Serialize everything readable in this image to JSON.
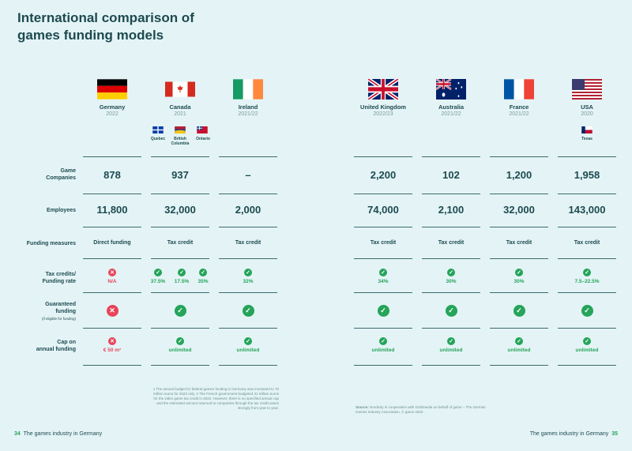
{
  "title_lines": [
    "International comparison of",
    "games funding models"
  ],
  "row_labels": {
    "companies": [
      "Game",
      "Companies"
    ],
    "employees": "Employees",
    "measures": "Funding measures",
    "rate": [
      "Tax credits/",
      "Funding rate"
    ],
    "guaranteed": [
      "Guaranteed",
      "funding"
    ],
    "guaranteed_note": "(if eligible for funding)",
    "cap": [
      "Cap on",
      "annual funding"
    ]
  },
  "countries": {
    "de": {
      "name": "Germany",
      "year": "2022",
      "companies": "878",
      "employees": "11,800",
      "measure": "Direct funding",
      "rate": "N/A",
      "cap": "€ 50 m¹"
    },
    "ca": {
      "name": "Canada",
      "year": "2021",
      "companies": "937",
      "employees": "32,000",
      "measure": "Tax credit",
      "cap": "unlimited"
    },
    "ie": {
      "name": "Ireland",
      "year": "2021/22",
      "companies": "–",
      "employees": "2,000",
      "measure": "Tax credit",
      "rate": "32%",
      "cap": "unlimited"
    },
    "uk": {
      "name": "United Kingdom",
      "year": "2022/23",
      "companies": "2,200",
      "employees": "74,000",
      "measure": "Tax credit",
      "rate": "34%",
      "cap": "unlimited"
    },
    "au": {
      "name": "Australia",
      "year": "2021/22",
      "companies": "102",
      "employees": "2,100",
      "measure": "Tax credit",
      "rate": "30%",
      "cap": "unlimited"
    },
    "fr": {
      "name": "France",
      "year": "2021/22",
      "companies": "1,200",
      "employees": "32,000",
      "measure": "Tax credit",
      "rate": "30%",
      "cap": "unlimited"
    },
    "us": {
      "name": "USA",
      "year": "2020",
      "companies": "1,958",
      "employees": "143,000",
      "measure": "Tax credit",
      "rate": "7.5–22.5%",
      "cap": "unlimited",
      "province": "Texas"
    }
  },
  "canada_provinces": [
    {
      "name": "Quebec",
      "rate": "37.5%"
    },
    {
      "name": "British Columbia",
      "rate": "17.5%"
    },
    {
      "name": "Ontario",
      "rate": "35%"
    }
  ],
  "footnote": "1 The annual budget for federal games funding in Germany was increased to 70 million euros for 2023 only. 2 The French government budgeted 31 million euros for the video game tax credit in 2022. However, there is no specified annual cap and the estimated amount returned to companies through the tax credit varies strongly from year to year.",
  "source_label": "Source:",
  "source_text": "Nordicity in cooperation with Goldmedia on behalf of game – The German Games Industry Association, © game 2023",
  "footer_left": {
    "page": "34",
    "text": "The games industry in Germany"
  },
  "footer_right": {
    "page": "35",
    "text": "The games industry in Germany"
  },
  "colors": {
    "accent": "#25a45a",
    "negative": "#e8445a",
    "text": "#1d4a50",
    "background": "#e4f4f6"
  }
}
